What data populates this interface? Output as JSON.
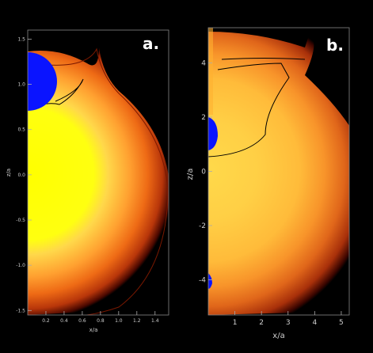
{
  "panels": [
    {
      "id": "a",
      "label": "a.",
      "xlabel": "x/a",
      "ylabel": "z/a",
      "x_ticks": [
        "0.2",
        "0.4",
        "0.6",
        "0.8",
        "1.0",
        "1.2",
        "1.4"
      ],
      "y_ticks": [
        "1.5",
        "1.0",
        "0.5",
        "0.0",
        "-0.5",
        "-1.0",
        "-1.5"
      ],
      "xlim": [
        0,
        1.55
      ],
      "ylim": [
        -1.55,
        1.6
      ]
    },
    {
      "id": "b",
      "label": "b.",
      "xlabel": "x/a",
      "ylabel": "z/a",
      "x_ticks": [
        "1",
        "2",
        "3",
        "4",
        "5"
      ],
      "y_ticks": [
        "4",
        "2",
        "0",
        "-2",
        "-4"
      ],
      "xlim": [
        0,
        5.3
      ],
      "ylim": [
        -5.3,
        5.3
      ]
    }
  ],
  "colors": {
    "background": "#000000",
    "core": "#ffff00",
    "inner": "#ffcc33",
    "mid": "#ff8c1a",
    "outer": "#c8400a",
    "edge": "#5a0c00",
    "planet": "#0a14ff",
    "contour": "#000000",
    "label": "#ffffff"
  }
}
